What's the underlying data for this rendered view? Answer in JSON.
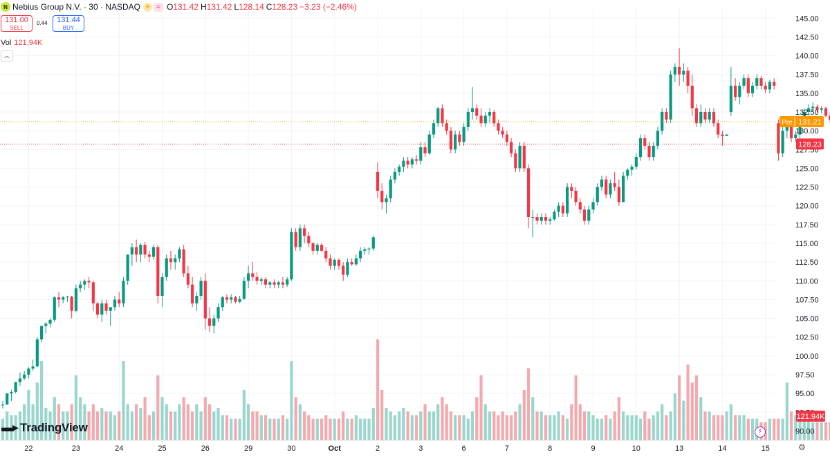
{
  "header": {
    "title": "Nebius Group N.V. · 30 · NASDAQ",
    "logo_text": "N",
    "open": "131.42",
    "high": "131.42",
    "low": "128.14",
    "close": "128.23",
    "change": "−3.23 (−2.46%)",
    "open_label": "O",
    "high_label": "H",
    "low_label": "L",
    "close_label": "C",
    "icons": [
      "logo-icon",
      "sun-icon",
      "wave-icon"
    ]
  },
  "trade": {
    "sell_price": "131.00",
    "sell_label": "SELL",
    "buy_price": "131.44",
    "buy_label": "BUY",
    "spread": "0.44"
  },
  "volume": {
    "label": "Vol",
    "value": "121.94K"
  },
  "branding": {
    "name": "TradingView"
  },
  "colors": {
    "up": "#089981",
    "down": "#f23645",
    "up_vol": "#9ad6cc",
    "down_vol": "#f4a9ae",
    "pre": "#ff9800"
  },
  "chart_data": {
    "type": "candlestick",
    "y_range": [
      88.75,
      146.5
    ],
    "y_ticks": [
      "145.00",
      "142.50",
      "140.00",
      "137.50",
      "135.00",
      "132.50",
      "130.00",
      "127.50",
      "125.00",
      "122.50",
      "120.00",
      "117.50",
      "115.00",
      "112.50",
      "110.00",
      "107.50",
      "105.00",
      "102.50",
      "100.00",
      "97.50",
      "95.00",
      "92.50",
      "90.00"
    ],
    "x_labels": [
      {
        "label": "22",
        "i": 6
      },
      {
        "label": "23",
        "i": 17
      },
      {
        "label": "24",
        "i": 27
      },
      {
        "label": "25",
        "i": 37
      },
      {
        "label": "26",
        "i": 47
      },
      {
        "label": "29",
        "i": 57
      },
      {
        "label": "30",
        "i": 67
      },
      {
        "label": "Oct",
        "i": 77
      },
      {
        "label": "2",
        "i": 87
      },
      {
        "label": "3",
        "i": 97
      },
      {
        "label": "6",
        "i": 107
      },
      {
        "label": "7",
        "i": 117
      },
      {
        "label": "8",
        "i": 127
      },
      {
        "label": "9",
        "i": 137
      },
      {
        "label": "10",
        "i": 147
      },
      {
        "label": "13",
        "i": 157
      },
      {
        "label": "14",
        "i": 167
      },
      {
        "label": "15",
        "i": 177
      }
    ],
    "price_markers": [
      {
        "label": "Pre",
        "value": "131.21",
        "price": 131.21,
        "color": "#ff9800"
      },
      {
        "label": "",
        "value": "128.23",
        "price": 128.23,
        "color": "#f23645"
      }
    ],
    "volume_marker": {
      "value": "121.94K",
      "color": "#f23645"
    },
    "candles": [
      [
        93.5,
        94,
        93,
        93.5
      ],
      [
        93.5,
        95,
        93.5,
        95
      ],
      [
        95,
        95.5,
        94,
        95.2
      ],
      [
        95.2,
        96.5,
        95,
        96.5
      ],
      [
        96.5,
        97.8,
        96,
        97
      ],
      [
        97,
        98,
        96.8,
        97.5
      ],
      [
        97.5,
        98.5,
        97,
        98.3
      ],
      [
        98.3,
        99.5,
        98,
        98.6
      ],
      [
        98.6,
        102.5,
        98.5,
        102.2
      ],
      [
        102.2,
        104,
        101.8,
        104
      ],
      [
        104,
        104.5,
        103,
        104.3
      ],
      [
        104.3,
        105,
        103.8,
        104.8
      ],
      [
        104.8,
        108,
        104.5,
        107.8
      ],
      [
        107.8,
        108.5,
        106.5,
        107.5
      ],
      [
        107.5,
        108,
        107,
        107.8
      ],
      [
        107.8,
        108,
        107.2,
        107.9
      ],
      [
        107.9,
        108,
        105,
        106
      ],
      [
        106,
        109.5,
        105.8,
        109
      ],
      [
        109,
        110,
        108.5,
        109.5
      ],
      [
        109.5,
        110.2,
        108.8,
        110
      ],
      [
        110,
        110.5,
        109,
        109.8
      ],
      [
        109.8,
        110,
        106,
        107
      ],
      [
        107,
        107.2,
        105,
        105.5
      ],
      [
        105.5,
        107.5,
        104.5,
        107
      ],
      [
        107,
        107.5,
        105.5,
        106
      ],
      [
        106,
        106.5,
        104,
        106.5
      ],
      [
        106.5,
        108,
        106,
        107.5
      ],
      [
        107.5,
        108.5,
        106.5,
        107
      ],
      [
        107,
        110.5,
        106.5,
        110
      ],
      [
        110,
        113.5,
        109.5,
        113.5
      ],
      [
        113.5,
        115,
        112,
        114.5
      ],
      [
        114.5,
        115.5,
        112.5,
        113.5
      ],
      [
        113.5,
        115,
        112.5,
        114.8
      ],
      [
        114.8,
        115.2,
        113,
        113.5
      ],
      [
        113.5,
        114,
        112.5,
        113.2
      ],
      [
        113.2,
        114.8,
        112.8,
        114.5
      ],
      [
        114.5,
        114.8,
        107,
        108
      ],
      [
        108,
        111,
        106.5,
        110.5
      ],
      [
        110.5,
        113.5,
        110,
        113
      ],
      [
        113,
        114,
        111.5,
        112.5
      ],
      [
        112.5,
        113.5,
        111.5,
        113
      ],
      [
        113,
        114.5,
        112.5,
        114.2
      ],
      [
        114.2,
        114.8,
        110.5,
        111
      ],
      [
        111,
        112,
        109,
        109.5
      ],
      [
        109.5,
        110.5,
        106.5,
        107
      ],
      [
        107,
        108.5,
        106,
        108
      ],
      [
        108,
        110.5,
        107.5,
        110
      ],
      [
        110,
        111,
        103.5,
        105
      ],
      [
        105,
        106.5,
        103.2,
        104
      ],
      [
        104,
        105.5,
        103,
        105
      ],
      [
        105,
        107,
        104.5,
        106.5
      ],
      [
        106.5,
        108,
        106,
        107.8
      ],
      [
        107.8,
        108.2,
        107,
        107.5
      ],
      [
        107.5,
        108.2,
        107,
        107.8
      ],
      [
        107.8,
        108,
        107,
        107.2
      ],
      [
        107.2,
        108,
        107,
        107.6
      ],
      [
        107.6,
        110.5,
        107.5,
        110
      ],
      [
        110,
        112,
        109,
        111
      ],
      [
        111,
        112.5,
        110,
        110.5
      ],
      [
        110.5,
        111.2,
        109.5,
        110
      ],
      [
        110,
        110.5,
        109.5,
        110.2
      ],
      [
        110.2,
        110.5,
        109,
        109.5
      ],
      [
        109.5,
        110,
        109,
        109.8
      ],
      [
        109.8,
        110.2,
        109,
        109.5
      ],
      [
        109.5,
        110,
        109,
        109.8
      ],
      [
        109.8,
        110.5,
        109,
        109.5
      ],
      [
        109.5,
        110.5,
        109.2,
        110.2
      ],
      [
        110.2,
        117,
        110,
        116.5
      ],
      [
        116.5,
        117,
        114,
        114.5
      ],
      [
        114.5,
        117.5,
        114,
        117
      ],
      [
        117,
        117.5,
        115,
        116
      ],
      [
        116,
        116.5,
        114.5,
        115
      ],
      [
        115,
        115.2,
        113.5,
        114
      ],
      [
        114,
        115,
        113.5,
        114.8
      ],
      [
        114.8,
        115,
        113.8,
        114
      ],
      [
        114,
        114.5,
        112.5,
        113
      ],
      [
        113,
        113.5,
        111.5,
        112
      ],
      [
        112,
        113,
        111.5,
        112.8
      ],
      [
        112.8,
        113,
        111.5,
        112
      ],
      [
        112,
        112.5,
        110,
        110.8
      ],
      [
        110.8,
        113,
        110.5,
        112.5
      ],
      [
        112.5,
        113,
        112,
        112.2
      ],
      [
        112.2,
        113.5,
        112,
        113
      ],
      [
        113,
        114.5,
        112.5,
        114
      ],
      [
        114,
        114.5,
        113.5,
        114.2
      ],
      [
        114.2,
        114.5,
        113.5,
        114.3
      ],
      [
        114.3,
        116,
        114,
        115.8
      ],
      [
        124.5,
        125.8,
        121,
        122
      ],
      [
        122,
        123,
        119.5,
        120.5
      ],
      [
        120.5,
        121.5,
        119,
        121
      ],
      [
        121,
        124,
        120.5,
        123.5
      ],
      [
        123.5,
        125,
        123,
        124.5
      ],
      [
        124.5,
        125.5,
        124,
        125.2
      ],
      [
        125.2,
        126.5,
        124.5,
        126
      ],
      [
        126,
        126.5,
        125,
        125.5
      ],
      [
        125.5,
        126.5,
        125,
        126.2
      ],
      [
        126.2,
        126.8,
        125.5,
        126
      ],
      [
        126,
        128.5,
        125.5,
        127.8
      ],
      [
        127.8,
        128.5,
        126.5,
        127
      ],
      [
        127,
        130,
        126.8,
        129.5
      ],
      [
        129.5,
        131.5,
        129,
        131
      ],
      [
        131,
        133.2,
        130.5,
        133
      ],
      [
        133,
        133.5,
        130.5,
        131
      ],
      [
        131,
        131.5,
        129.5,
        130
      ],
      [
        130,
        130.5,
        127,
        127.5
      ],
      [
        127.5,
        130,
        127,
        129.5
      ],
      [
        129.5,
        130,
        128,
        128.5
      ],
      [
        128.5,
        131,
        128,
        130.5
      ],
      [
        130.5,
        133,
        130,
        132.5
      ],
      [
        132.5,
        135.8,
        131.5,
        133
      ],
      [
        133,
        133.5,
        131.5,
        132
      ],
      [
        132,
        133,
        130.5,
        131
      ],
      [
        131,
        132.5,
        130.5,
        132
      ],
      [
        132,
        133,
        131,
        132.5
      ],
      [
        132.5,
        132.8,
        130.5,
        131
      ],
      [
        131,
        131.5,
        129.5,
        130
      ],
      [
        130,
        130.5,
        129,
        129.5
      ],
      [
        129.5,
        130,
        128,
        128.5
      ],
      [
        128.5,
        129,
        126.5,
        127
      ],
      [
        127,
        127.5,
        124.5,
        125
      ],
      [
        125,
        128.5,
        124.5,
        128
      ],
      [
        128,
        128.5,
        124.5,
        125
      ],
      [
        125,
        125.5,
        117,
        118.5
      ],
      [
        118.5,
        119.5,
        115.8,
        118.5
      ],
      [
        118.5,
        119,
        117.5,
        118
      ],
      [
        118,
        119,
        117.5,
        118.5
      ],
      [
        118.5,
        119,
        117.5,
        118
      ],
      [
        118,
        118.5,
        117.5,
        118.2
      ],
      [
        118.2,
        119.5,
        118,
        119.2
      ],
      [
        119.2,
        120.5,
        118.5,
        120
      ],
      [
        120,
        120.5,
        118.5,
        119
      ],
      [
        119,
        123,
        118.5,
        122.5
      ],
      [
        122.5,
        123,
        121,
        122
      ],
      [
        122,
        122.5,
        120,
        120.5
      ],
      [
        120.5,
        121,
        119,
        119.5
      ],
      [
        119.5,
        120,
        117.5,
        118
      ],
      [
        118,
        120,
        117.5,
        119.5
      ],
      [
        119.5,
        121,
        119,
        120.5
      ],
      [
        120.5,
        123,
        120,
        122.5
      ],
      [
        122.5,
        124,
        122,
        123.5
      ],
      [
        123.5,
        124,
        121,
        121.5
      ],
      [
        121.5,
        123.5,
        121,
        123
      ],
      [
        123,
        124.5,
        122,
        122.5
      ],
      [
        122.5,
        123.5,
        120,
        120.5
      ],
      [
        120.5,
        124.5,
        120.5,
        124
      ],
      [
        124,
        125,
        123.5,
        124.8
      ],
      [
        124.8,
        125.5,
        124,
        125.2
      ],
      [
        125.2,
        127,
        124.8,
        126.5
      ],
      [
        126.5,
        129.5,
        126,
        129
      ],
      [
        129,
        129.5,
        127.5,
        128
      ],
      [
        128,
        128.5,
        126,
        126.5
      ],
      [
        126.5,
        128.5,
        126,
        128
      ],
      [
        128,
        130.5,
        127.5,
        130
      ],
      [
        130,
        133,
        129.5,
        132.5
      ],
      [
        132.5,
        133,
        131,
        131.5
      ],
      [
        131.5,
        138,
        131,
        137.5
      ],
      [
        137.5,
        139,
        136.5,
        138.5
      ],
      [
        138.5,
        141,
        136,
        137.5
      ],
      [
        137.5,
        139,
        136.5,
        138
      ],
      [
        138,
        138.5,
        135,
        136
      ],
      [
        136,
        137.5,
        132,
        133
      ],
      [
        133,
        133.5,
        130.5,
        131
      ],
      [
        131,
        133.5,
        130.5,
        132.5
      ],
      [
        132.5,
        133,
        131,
        131.5
      ],
      [
        131.5,
        133,
        131,
        132.5
      ],
      [
        132.5,
        133,
        130.5,
        131
      ],
      [
        131,
        131.5,
        129,
        129.5
      ],
      [
        129.5,
        130,
        128,
        129.3
      ],
      [
        129.3,
        129.5,
        129.3,
        129.5
      ],
      [
        132.5,
        138.5,
        132,
        136
      ],
      [
        136,
        137,
        134,
        134.5
      ],
      [
        134.5,
        136.5,
        133.5,
        136
      ],
      [
        136,
        137.5,
        135.5,
        137
      ],
      [
        137,
        137.5,
        134.5,
        135
      ],
      [
        135,
        136.5,
        134.5,
        136
      ],
      [
        136,
        137.5,
        135.5,
        137
      ],
      [
        137,
        137.3,
        135.5,
        136
      ],
      [
        136,
        136.5,
        135,
        135.5
      ],
      [
        135.5,
        136.8,
        135,
        136.5
      ],
      [
        136.5,
        137,
        135.5,
        136
      ],
      [
        131,
        131.5,
        126,
        127
      ],
      [
        127,
        130.5,
        126.5,
        130
      ],
      [
        130,
        131,
        129,
        130.5
      ],
      [
        130.5,
        131,
        128.5,
        129
      ],
      [
        129,
        130,
        128.5,
        129.5
      ],
      [
        129.5,
        132,
        129,
        131.5
      ],
      [
        131.5,
        133,
        131,
        132.5
      ],
      [
        132.5,
        133.5,
        132,
        133
      ],
      [
        133,
        133.8,
        132.5,
        133.2
      ],
      [
        133.2,
        133.5,
        132.5,
        132.8
      ],
      [
        132.8,
        133.3,
        132.3,
        133
      ],
      [
        133,
        133.2,
        131.8,
        132
      ],
      [
        132,
        132.5,
        131,
        131.42
      ],
      [
        131.42,
        131.42,
        128.14,
        128.23
      ]
    ],
    "volumes": [
      3,
      4,
      3.5,
      3.5,
      4,
      5,
      7,
      5,
      8,
      11,
      4.5,
      4,
      6,
      5,
      4,
      4,
      5,
      9,
      6,
      5,
      4,
      5,
      4,
      4.5,
      4,
      4,
      3.5,
      4,
      11,
      5,
      4,
      5,
      4.5,
      6,
      3.5,
      4,
      9,
      6,
      5,
      4,
      4,
      5,
      6,
      5,
      4,
      5,
      4,
      6,
      5,
      4,
      4.5,
      3.5,
      3.5,
      3,
      3,
      3,
      7,
      5,
      4,
      4,
      3.5,
      3.5,
      3,
      3,
      3,
      3.5,
      3,
      11,
      6,
      5,
      4,
      3.5,
      3,
      3,
      3,
      3.5,
      3,
      3,
      3,
      4,
      3,
      3,
      3.5,
      3,
      3,
      3,
      4.5,
      14,
      7,
      4.5,
      4,
      3.5,
      4,
      4.5,
      4,
      3.5,
      3.5,
      4,
      5,
      4,
      4,
      5,
      6,
      5,
      4,
      3.5,
      3.5,
      3.5,
      3,
      4,
      6,
      9,
      5,
      4,
      4,
      3.5,
      4,
      3.5,
      3.5,
      4,
      5,
      7,
      10,
      6,
      4,
      4,
      3.5,
      3.5,
      3.5,
      4,
      3.5,
      3,
      5,
      9,
      5,
      4,
      4,
      3.5,
      3,
      3,
      3.5,
      3,
      4,
      6,
      4,
      3.5,
      3.5,
      3.5,
      3,
      4,
      3,
      3.5,
      4,
      5,
      3.5,
      4,
      6.5,
      9,
      5.5,
      10.5,
      8,
      9,
      6,
      4,
      4,
      3.5,
      3.5,
      3.5,
      4,
      5,
      3.5,
      3.5,
      3.5,
      3,
      3,
      3,
      2.5,
      2.5,
      3,
      3,
      3,
      3,
      8,
      4,
      3.5,
      4,
      3.5,
      3,
      2.5,
      2.5,
      2.5,
      2.5,
      2.5,
      4,
      2,
      3.5,
      3
    ],
    "volume_axis_max": 16
  }
}
